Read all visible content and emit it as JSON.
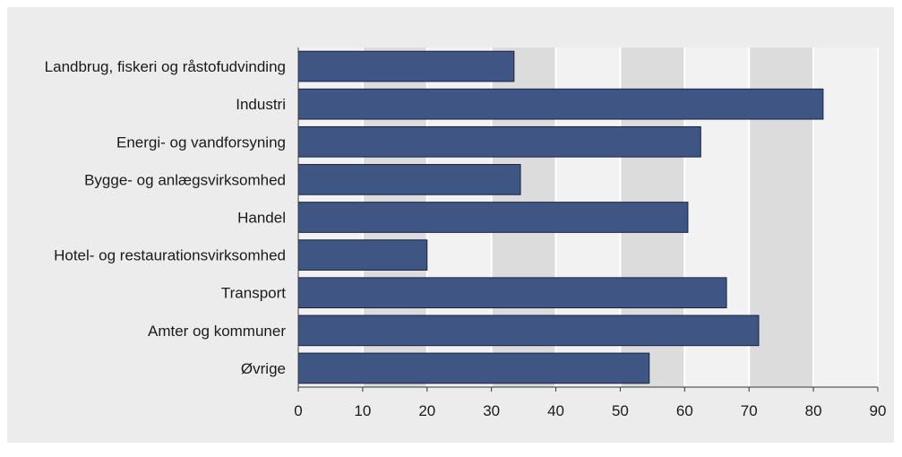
{
  "chart_data": {
    "type": "bar",
    "orientation": "horizontal",
    "title": "",
    "xlabel": "",
    "ylabel": "",
    "categories": [
      "Landbrug, fiskeri og råstofudvinding",
      "Industri",
      "Energi- og vandforsyning",
      "Bygge- og anlægsvirksomhed",
      "Handel",
      "Hotel- og restaurationsvirksomhed",
      "Transport",
      "Amter og kommuner",
      "Øvrige"
    ],
    "values": [
      33.5,
      81.5,
      62.5,
      34.5,
      60.5,
      20,
      66.5,
      71.5,
      54.5
    ],
    "xlim": [
      0,
      90
    ],
    "xticks": [
      "0",
      "10",
      "20",
      "30",
      "40",
      "50",
      "60",
      "70",
      "80",
      "90"
    ],
    "grid": true,
    "legend": "none",
    "colors": {
      "bar": "#3f5584",
      "bar_border": "#1a2340",
      "plot_bg_light": "#f2f2f2",
      "plot_bg_dark": "#dcdcdc",
      "grid": "#ffffff",
      "frame_bg": "#ececec"
    }
  }
}
